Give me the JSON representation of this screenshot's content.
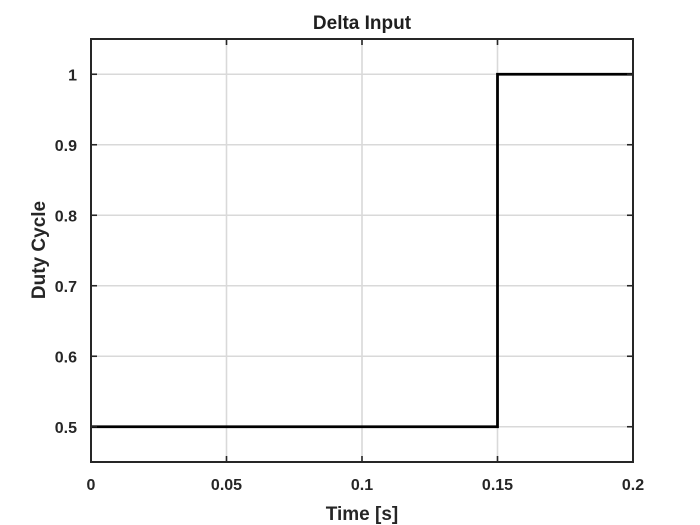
{
  "chart_data": {
    "type": "line",
    "title": "Delta Input",
    "xlabel": "Time [s]",
    "ylabel": "Duty Cycle",
    "xlim": [
      0,
      0.2
    ],
    "ylim": [
      0.45,
      1.05
    ],
    "xticks": [
      0,
      0.05,
      0.1,
      0.15,
      0.2
    ],
    "xtick_labels": [
      "0",
      "0.05",
      "0.1",
      "0.15",
      "0.2"
    ],
    "yticks": [
      0.5,
      0.6,
      0.7,
      0.8,
      0.9,
      1.0
    ],
    "ytick_labels": [
      "0.5",
      "0.6",
      "0.7",
      "0.8",
      "0.9",
      "1"
    ],
    "grid": true,
    "series": [
      {
        "color": "#000000",
        "x": [
          0,
          0.15,
          0.15,
          0.2
        ],
        "y": [
          0.5,
          0.5,
          1.0,
          1.0
        ]
      }
    ]
  }
}
